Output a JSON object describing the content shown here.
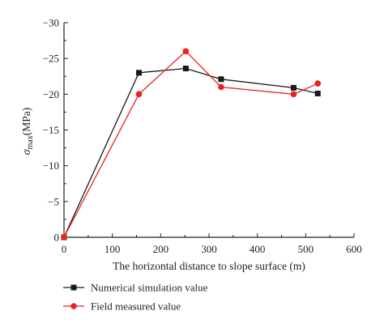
{
  "chart_data": {
    "type": "line",
    "xlabel": "The horizontal distance to slope surface (m)",
    "ylabel_symbol": "σ",
    "ylabel_sub": "max",
    "ylabel_unit": "(MPa)",
    "xlim": [
      0,
      600
    ],
    "ylim": [
      0,
      -30
    ],
    "x_ticks": [
      0,
      100,
      200,
      300,
      400,
      500,
      600
    ],
    "y_ticks": [
      0,
      -5,
      -10,
      -15,
      -20,
      -25,
      -30
    ],
    "y_tick_labels": [
      "0",
      "−5",
      "−10",
      "−15",
      "−20",
      "−25",
      "−30"
    ],
    "grid": false,
    "legend_position": "bottom-left",
    "series": [
      {
        "name": "Numerical simulation value",
        "color": "#1a1a1a",
        "marker": "square",
        "x": [
          0,
          155,
          252,
          325,
          475,
          525
        ],
        "y": [
          0,
          -23.0,
          -23.6,
          -22.1,
          -20.9,
          -20.1
        ]
      },
      {
        "name": "Field measured value",
        "color": "#e8231f",
        "marker": "circle",
        "x": [
          0,
          155,
          252,
          325,
          475,
          525
        ],
        "y": [
          0,
          -20.0,
          -26.0,
          -21.0,
          -20.0,
          -21.5
        ]
      }
    ]
  }
}
